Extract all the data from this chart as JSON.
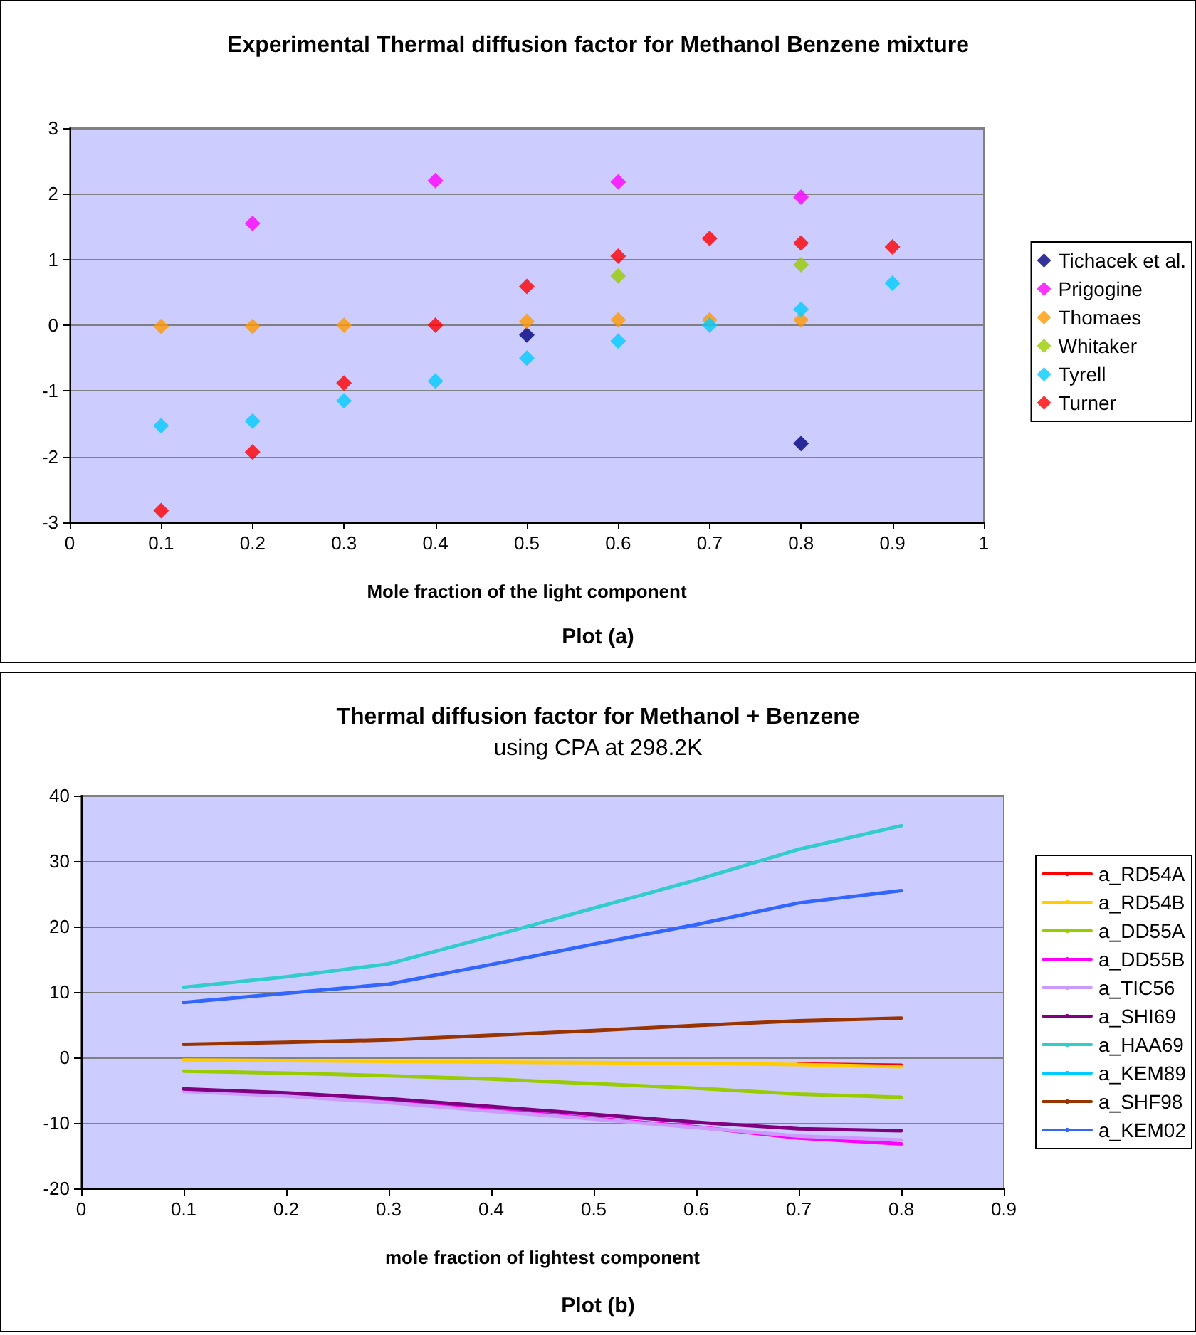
{
  "chart_data": [
    {
      "type": "scatter",
      "title": "Experimental Thermal diffusion factor for Methanol Benzene mixture",
      "xlabel": "Mole fraction of the light component",
      "annotations": [
        "Plot (a)"
      ],
      "marker": "diamond",
      "grid": "y",
      "legend": "right",
      "xlim": [
        0,
        1
      ],
      "xticks": [
        0,
        0.1,
        0.2,
        0.3,
        0.4,
        0.5,
        0.6,
        0.7,
        0.8,
        0.9,
        1
      ],
      "ylim": [
        -3,
        3
      ],
      "yticks": [
        -3,
        -2,
        -1,
        0,
        1,
        2,
        3
      ],
      "series": [
        {
          "name": "Tichacek et al.",
          "color": "#000080",
          "x": [
            0.5,
            0.8
          ],
          "values": [
            -0.15,
            -1.8
          ]
        },
        {
          "name": "Prigogine",
          "color": "#ff00ff",
          "x": [
            0.2,
            0.4,
            0.6,
            0.8
          ],
          "values": [
            1.55,
            2.2,
            2.18,
            1.95
          ]
        },
        {
          "name": "Thomaes",
          "color": "#ff9900",
          "x": [
            0.1,
            0.2,
            0.3,
            0.5,
            0.6,
            0.7,
            0.8
          ],
          "values": [
            -0.02,
            -0.02,
            0,
            0.06,
            0.08,
            0.08,
            0.08
          ]
        },
        {
          "name": "Whitaker",
          "color": "#99cc00",
          "x": [
            0.6,
            0.8
          ],
          "values": [
            0.75,
            0.92
          ]
        },
        {
          "name": "Tyrell",
          "color": "#00ccff",
          "x": [
            0.1,
            0.2,
            0.3,
            0.4,
            0.5,
            0.6,
            0.7,
            0.8,
            0.9
          ],
          "values": [
            -1.53,
            -1.46,
            -1.15,
            -0.85,
            -0.5,
            -0.24,
            0,
            0.24,
            0.64
          ]
        },
        {
          "name": "Turner",
          "color": "#ff0000",
          "x": [
            0.1,
            0.2,
            0.3,
            0.4,
            0.5,
            0.6,
            0.7,
            0.8,
            0.9
          ],
          "values": [
            -2.82,
            -1.93,
            -0.88,
            0,
            0.59,
            1.05,
            1.32,
            1.25,
            1.19
          ]
        }
      ]
    },
    {
      "type": "line",
      "title": "Thermal diffusion factor for Methanol + Benzene",
      "subtitle": "using CPA at 298.2K",
      "xlabel": "mole fraction of lightest component",
      "annotations": [
        "Plot (b)"
      ],
      "marker": "none",
      "line_style": "solid",
      "grid": "y",
      "legend": "right",
      "xlim": [
        0,
        0.9
      ],
      "xticks": [
        0,
        0.1,
        0.2,
        0.3,
        0.4,
        0.5,
        0.6,
        0.7,
        0.8,
        0.9
      ],
      "ylim": [
        -20,
        40
      ],
      "yticks": [
        -20,
        -10,
        0,
        10,
        20,
        30,
        40
      ],
      "x": [
        0.1,
        0.2,
        0.3,
        0.4,
        0.5,
        0.6,
        0.7,
        0.8
      ],
      "series": [
        {
          "name": "a_RD54A",
          "color": "#ff0000",
          "values": [
            null,
            null,
            null,
            null,
            null,
            null,
            -1.0,
            -1.2
          ]
        },
        {
          "name": "a_RD54B",
          "color": "#ffcc00",
          "values": [
            -0.4,
            -0.5,
            -0.6,
            -0.7,
            -0.8,
            -0.9,
            -1.1,
            -1.4
          ]
        },
        {
          "name": "a_DD55A",
          "color": "#99cc00",
          "values": [
            -2.1,
            -2.4,
            -2.8,
            -3.3,
            -4.0,
            -4.7,
            -5.6,
            -6.1
          ]
        },
        {
          "name": "a_DD55B",
          "color": "#ff00ff",
          "values": [
            -5.0,
            -5.7,
            -6.7,
            -8.0,
            -9.3,
            -10.6,
            -12.3,
            -13.2
          ]
        },
        {
          "name": "a_TIC56",
          "color": "#cc99ff",
          "values": [
            -5.2,
            -5.9,
            -6.9,
            -8.2,
            -9.4,
            -10.7,
            -12.0,
            -12.6
          ]
        },
        {
          "name": "a_SHI69",
          "color": "#800080",
          "values": [
            -4.8,
            -5.4,
            -6.3,
            -7.5,
            -8.7,
            -9.9,
            -10.9,
            -11.2
          ]
        },
        {
          "name": "a_HAA69",
          "color": "#33cccc",
          "values": [
            10.7,
            12.3,
            14.3,
            18.5,
            22.8,
            27.1,
            31.8,
            35.4
          ]
        },
        {
          "name": "a_KEM89",
          "color": "#00ccff",
          "values": [
            null,
            null,
            null,
            null,
            null,
            null,
            null,
            null
          ]
        },
        {
          "name": "a_SHF98",
          "color": "#993300",
          "values": [
            2.0,
            2.3,
            2.7,
            3.4,
            4.1,
            4.9,
            5.6,
            6.0
          ]
        },
        {
          "name": "a_KEM02",
          "color": "#3366ff",
          "values": [
            8.4,
            9.8,
            11.2,
            14.2,
            17.3,
            20.3,
            23.6,
            25.5
          ]
        }
      ]
    }
  ]
}
